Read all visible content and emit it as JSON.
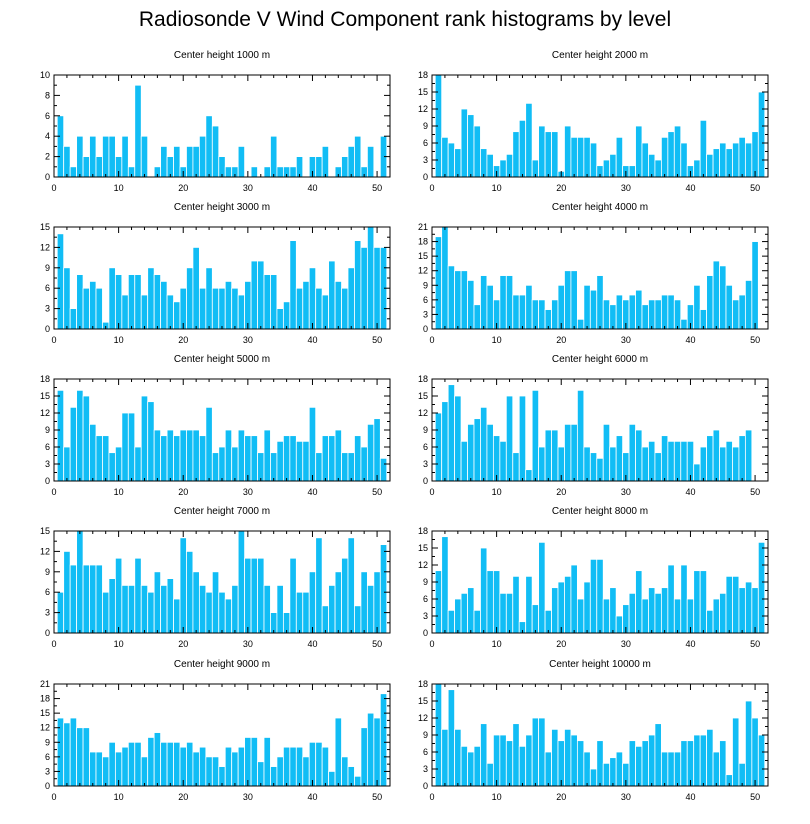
{
  "title": "Radiosonde V Wind Component rank histograms by level",
  "colors": {
    "bar": "#11bdf5",
    "bar_edge": "#ffffff",
    "axis": "#000000"
  },
  "chart_data": [
    {
      "type": "bar",
      "title": "Center height 1000 m",
      "xlabel": "",
      "ylabel": "",
      "xlim": [
        0,
        52
      ],
      "ylim": [
        0,
        10
      ],
      "xticks": [
        0,
        10,
        20,
        30,
        40,
        50
      ],
      "yticks": [
        0,
        2,
        4,
        6,
        8,
        10
      ],
      "categories": [
        1,
        2,
        3,
        4,
        5,
        6,
        7,
        8,
        9,
        10,
        11,
        12,
        13,
        14,
        15,
        16,
        17,
        18,
        19,
        20,
        21,
        22,
        23,
        24,
        25,
        26,
        27,
        28,
        29,
        30,
        31,
        32,
        33,
        34,
        35,
        36,
        37,
        38,
        39,
        40,
        41,
        42,
        43,
        44,
        45,
        46,
        47,
        48,
        49,
        50,
        51
      ],
      "values": [
        6,
        3,
        1,
        4,
        2,
        4,
        2,
        4,
        4,
        2,
        4,
        1,
        9,
        4,
        0,
        1,
        3,
        2,
        3,
        1,
        3,
        3,
        4,
        6,
        5,
        2,
        1,
        1,
        3,
        0,
        1,
        0,
        1,
        4,
        1,
        1,
        1,
        2,
        0,
        2,
        2,
        3,
        0,
        1,
        2,
        3,
        4,
        1,
        3,
        0,
        4
      ]
    },
    {
      "type": "bar",
      "title": "Center height 2000 m",
      "xlabel": "",
      "ylabel": "",
      "xlim": [
        0,
        52
      ],
      "ylim": [
        0,
        18
      ],
      "xticks": [
        0,
        10,
        20,
        30,
        40,
        50
      ],
      "yticks": [
        0,
        3,
        6,
        9,
        12,
        15,
        18
      ],
      "categories": [
        1,
        2,
        3,
        4,
        5,
        6,
        7,
        8,
        9,
        10,
        11,
        12,
        13,
        14,
        15,
        16,
        17,
        18,
        19,
        20,
        21,
        22,
        23,
        24,
        25,
        26,
        27,
        28,
        29,
        30,
        31,
        32,
        33,
        34,
        35,
        36,
        37,
        38,
        39,
        40,
        41,
        42,
        43,
        44,
        45,
        46,
        47,
        48,
        49,
        50,
        51
      ],
      "values": [
        18,
        7,
        6,
        5,
        12,
        11,
        9,
        5,
        4,
        2,
        3,
        4,
        8,
        10,
        13,
        3,
        9,
        8,
        8,
        1,
        9,
        7,
        7,
        7,
        6,
        2,
        3,
        4,
        7,
        2,
        2,
        9,
        6,
        4,
        3,
        7,
        8,
        9,
        6,
        2,
        3,
        10,
        4,
        5,
        6,
        5,
        6,
        7,
        6,
        8,
        15
      ]
    },
    {
      "type": "bar",
      "title": "Center height 3000 m",
      "xlabel": "",
      "ylabel": "",
      "xlim": [
        0,
        52
      ],
      "ylim": [
        0,
        15
      ],
      "xticks": [
        0,
        10,
        20,
        30,
        40,
        50
      ],
      "yticks": [
        0,
        3,
        6,
        9,
        12,
        15
      ],
      "categories": [
        1,
        2,
        3,
        4,
        5,
        6,
        7,
        8,
        9,
        10,
        11,
        12,
        13,
        14,
        15,
        16,
        17,
        18,
        19,
        20,
        21,
        22,
        23,
        24,
        25,
        26,
        27,
        28,
        29,
        30,
        31,
        32,
        33,
        34,
        35,
        36,
        37,
        38,
        39,
        40,
        41,
        42,
        43,
        44,
        45,
        46,
        47,
        48,
        49,
        50,
        51
      ],
      "values": [
        14,
        9,
        3,
        8,
        6,
        7,
        6,
        1,
        9,
        8,
        5,
        8,
        8,
        5,
        9,
        8,
        7,
        5,
        4,
        6,
        9,
        12,
        6,
        9,
        6,
        6,
        7,
        6,
        5,
        7,
        10,
        10,
        8,
        8,
        3,
        4,
        13,
        6,
        7,
        9,
        6,
        5,
        10,
        7,
        6,
        9,
        13,
        12,
        15,
        12,
        12
      ]
    },
    {
      "type": "bar",
      "title": "Center height 4000 m",
      "xlabel": "",
      "ylabel": "",
      "xlim": [
        0,
        52
      ],
      "ylim": [
        0,
        21
      ],
      "xticks": [
        0,
        10,
        20,
        30,
        40,
        50
      ],
      "yticks": [
        0,
        3,
        6,
        9,
        12,
        15,
        18,
        21
      ],
      "categories": [
        1,
        2,
        3,
        4,
        5,
        6,
        7,
        8,
        9,
        10,
        11,
        12,
        13,
        14,
        15,
        16,
        17,
        18,
        19,
        20,
        21,
        22,
        23,
        24,
        25,
        26,
        27,
        28,
        29,
        30,
        31,
        32,
        33,
        34,
        35,
        36,
        37,
        38,
        39,
        40,
        41,
        42,
        43,
        44,
        45,
        46,
        47,
        48,
        49,
        50,
        51
      ],
      "values": [
        19,
        21,
        13,
        12,
        12,
        10,
        5,
        11,
        9,
        6,
        11,
        11,
        7,
        7,
        9,
        6,
        6,
        4,
        6,
        9,
        12,
        12,
        2,
        9,
        8,
        11,
        6,
        5,
        7,
        6,
        7,
        8,
        5,
        6,
        6,
        7,
        7,
        6,
        2,
        5,
        9,
        4,
        11,
        14,
        13,
        9,
        6,
        7,
        10,
        18,
        0
      ]
    },
    {
      "type": "bar",
      "title": "Center height 5000 m",
      "xlabel": "",
      "ylabel": "",
      "xlim": [
        0,
        52
      ],
      "ylim": [
        0,
        18
      ],
      "xticks": [
        0,
        10,
        20,
        30,
        40,
        50
      ],
      "yticks": [
        0,
        3,
        6,
        9,
        12,
        15,
        18
      ],
      "categories": [
        1,
        2,
        3,
        4,
        5,
        6,
        7,
        8,
        9,
        10,
        11,
        12,
        13,
        14,
        15,
        16,
        17,
        18,
        19,
        20,
        21,
        22,
        23,
        24,
        25,
        26,
        27,
        28,
        29,
        30,
        31,
        32,
        33,
        34,
        35,
        36,
        37,
        38,
        39,
        40,
        41,
        42,
        43,
        44,
        45,
        46,
        47,
        48,
        49,
        50,
        51
      ],
      "values": [
        16,
        6,
        13,
        16,
        15,
        10,
        8,
        8,
        5,
        6,
        12,
        12,
        6,
        15,
        14,
        9,
        8,
        9,
        8,
        9,
        9,
        9,
        8,
        13,
        5,
        6,
        9,
        6,
        9,
        8,
        8,
        5,
        9,
        5,
        7,
        8,
        8,
        7,
        7,
        13,
        5,
        8,
        8,
        9,
        5,
        5,
        8,
        6,
        10,
        11,
        4
      ]
    },
    {
      "type": "bar",
      "title": "Center height 6000 m",
      "xlabel": "",
      "ylabel": "",
      "xlim": [
        0,
        52
      ],
      "ylim": [
        0,
        18
      ],
      "xticks": [
        0,
        10,
        20,
        30,
        40,
        50
      ],
      "yticks": [
        0,
        3,
        6,
        9,
        12,
        15,
        18
      ],
      "categories": [
        1,
        2,
        3,
        4,
        5,
        6,
        7,
        8,
        9,
        10,
        11,
        12,
        13,
        14,
        15,
        16,
        17,
        18,
        19,
        20,
        21,
        22,
        23,
        24,
        25,
        26,
        27,
        28,
        29,
        30,
        31,
        32,
        33,
        34,
        35,
        36,
        37,
        38,
        39,
        40,
        41,
        42,
        43,
        44,
        45,
        46,
        47,
        48,
        49,
        50,
        51
      ],
      "values": [
        12,
        14,
        17,
        15,
        7,
        10,
        11,
        13,
        10,
        8,
        7,
        15,
        5,
        15,
        2,
        16,
        6,
        9,
        9,
        6,
        10,
        10,
        16,
        6,
        5,
        4,
        10,
        6,
        8,
        5,
        10,
        9,
        6,
        7,
        5,
        8,
        7,
        7,
        7,
        7,
        3,
        6,
        8,
        9,
        6,
        7,
        6,
        8,
        9,
        0,
        0
      ]
    },
    {
      "type": "bar",
      "title": "Center height 7000 m",
      "xlabel": "",
      "ylabel": "",
      "xlim": [
        0,
        52
      ],
      "ylim": [
        0,
        15
      ],
      "xticks": [
        0,
        10,
        20,
        30,
        40,
        50
      ],
      "yticks": [
        0,
        3,
        6,
        9,
        12,
        15
      ],
      "categories": [
        1,
        2,
        3,
        4,
        5,
        6,
        7,
        8,
        9,
        10,
        11,
        12,
        13,
        14,
        15,
        16,
        17,
        18,
        19,
        20,
        21,
        22,
        23,
        24,
        25,
        26,
        27,
        28,
        29,
        30,
        31,
        32,
        33,
        34,
        35,
        36,
        37,
        38,
        39,
        40,
        41,
        42,
        43,
        44,
        45,
        46,
        47,
        48,
        49,
        50,
        51
      ],
      "values": [
        6,
        12,
        10,
        15,
        10,
        10,
        10,
        6,
        8,
        11,
        7,
        7,
        11,
        7,
        6,
        9,
        7,
        8,
        5,
        14,
        12,
        9,
        7,
        6,
        9,
        6,
        5,
        7,
        15,
        11,
        11,
        11,
        7,
        3,
        7,
        3,
        11,
        6,
        6,
        9,
        14,
        4,
        7,
        9,
        11,
        14,
        4,
        9,
        7,
        9,
        13
      ]
    },
    {
      "type": "bar",
      "title": "Center height 8000 m",
      "xlabel": "",
      "ylabel": "",
      "xlim": [
        0,
        52
      ],
      "ylim": [
        0,
        18
      ],
      "xticks": [
        0,
        10,
        20,
        30,
        40,
        50
      ],
      "yticks": [
        0,
        3,
        6,
        9,
        12,
        15,
        18
      ],
      "categories": [
        1,
        2,
        3,
        4,
        5,
        6,
        7,
        8,
        9,
        10,
        11,
        12,
        13,
        14,
        15,
        16,
        17,
        18,
        19,
        20,
        21,
        22,
        23,
        24,
        25,
        26,
        27,
        28,
        29,
        30,
        31,
        32,
        33,
        34,
        35,
        36,
        37,
        38,
        39,
        40,
        41,
        42,
        43,
        44,
        45,
        46,
        47,
        48,
        49,
        50,
        51
      ],
      "values": [
        11,
        17,
        4,
        6,
        7,
        8,
        4,
        15,
        11,
        11,
        7,
        7,
        10,
        2,
        10,
        5,
        16,
        4,
        8,
        9,
        10,
        12,
        6,
        9,
        13,
        13,
        6,
        8,
        3,
        5,
        7,
        11,
        6,
        8,
        7,
        8,
        12,
        6,
        12,
        6,
        11,
        11,
        4,
        6,
        7,
        10,
        10,
        8,
        9,
        8,
        16
      ]
    },
    {
      "type": "bar",
      "title": "Center height 9000 m",
      "xlabel": "",
      "ylabel": "",
      "xlim": [
        0,
        52
      ],
      "ylim": [
        0,
        21
      ],
      "xticks": [
        0,
        10,
        20,
        30,
        40,
        50
      ],
      "yticks": [
        0,
        3,
        6,
        9,
        12,
        15,
        18,
        21
      ],
      "categories": [
        1,
        2,
        3,
        4,
        5,
        6,
        7,
        8,
        9,
        10,
        11,
        12,
        13,
        14,
        15,
        16,
        17,
        18,
        19,
        20,
        21,
        22,
        23,
        24,
        25,
        26,
        27,
        28,
        29,
        30,
        31,
        32,
        33,
        34,
        35,
        36,
        37,
        38,
        39,
        40,
        41,
        42,
        43,
        44,
        45,
        46,
        47,
        48,
        49,
        50,
        51
      ],
      "values": [
        14,
        13,
        14,
        12,
        12,
        7,
        7,
        6,
        9,
        7,
        8,
        9,
        9,
        6,
        10,
        11,
        9,
        9,
        9,
        8,
        9,
        7,
        8,
        6,
        6,
        4,
        8,
        7,
        8,
        10,
        10,
        5,
        10,
        4,
        6,
        8,
        8,
        8,
        6,
        9,
        9,
        8,
        3,
        14,
        6,
        4,
        2,
        12,
        15,
        14,
        19
      ]
    },
    {
      "type": "bar",
      "title": "Center height 10000 m",
      "xlabel": "",
      "ylabel": "",
      "xlim": [
        0,
        52
      ],
      "ylim": [
        0,
        18
      ],
      "xticks": [
        0,
        10,
        20,
        30,
        40,
        50
      ],
      "yticks": [
        0,
        3,
        6,
        9,
        12,
        15,
        18
      ],
      "categories": [
        1,
        2,
        3,
        4,
        5,
        6,
        7,
        8,
        9,
        10,
        11,
        12,
        13,
        14,
        15,
        16,
        17,
        18,
        19,
        20,
        21,
        22,
        23,
        24,
        25,
        26,
        27,
        28,
        29,
        30,
        31,
        32,
        33,
        34,
        35,
        36,
        37,
        38,
        39,
        40,
        41,
        42,
        43,
        44,
        45,
        46,
        47,
        48,
        49,
        50,
        51
      ],
      "values": [
        18,
        10,
        17,
        10,
        7,
        6,
        7,
        11,
        4,
        9,
        9,
        8,
        11,
        7,
        9,
        12,
        12,
        6,
        10,
        8,
        10,
        9,
        8,
        6,
        3,
        8,
        4,
        5,
        6,
        4,
        8,
        7,
        8,
        9,
        11,
        6,
        6,
        6,
        8,
        8,
        9,
        9,
        10,
        6,
        8,
        2,
        12,
        4,
        15,
        12,
        9
      ]
    }
  ]
}
